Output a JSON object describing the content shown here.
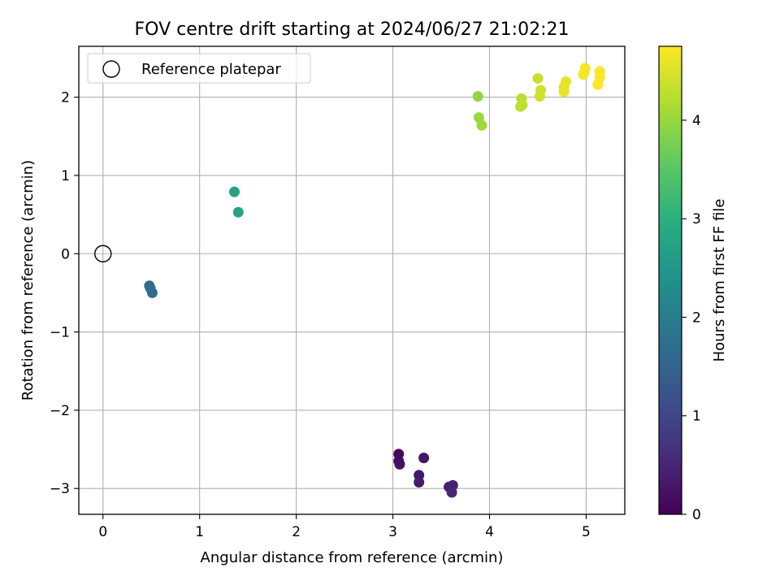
{
  "chart_data": {
    "type": "scatter",
    "title": "FOV centre drift starting at 2024/06/27 21:02:21",
    "xlabel": "Angular distance from reference (arcmin)",
    "ylabel": "Rotation from reference (arcmin)",
    "xlim": [
      -0.25,
      5.4
    ],
    "ylim": [
      -3.33,
      2.65
    ],
    "xticks": [
      0,
      1,
      2,
      3,
      4,
      5
    ],
    "yticks": [
      -3,
      -2,
      -1,
      0,
      1,
      2
    ],
    "xtick_labels": [
      "0",
      "1",
      "2",
      "3",
      "4",
      "5"
    ],
    "ytick_labels": [
      "−3",
      "−2",
      "−1",
      "0",
      "1",
      "2"
    ],
    "grid": true,
    "colormap": "viridis",
    "colorbar": {
      "label": "Hours from first FF file",
      "range": [
        0,
        4.75
      ],
      "ticks": [
        0,
        1,
        2,
        3,
        4
      ],
      "tick_labels": [
        "0",
        "1",
        "2",
        "3",
        "4"
      ]
    },
    "legend": {
      "position": "upper-left",
      "entries": [
        {
          "label": "Reference platepar",
          "marker": "open-circle"
        }
      ]
    },
    "reference_point": {
      "x": 0,
      "y": 0
    },
    "points": [
      {
        "x": 3.06,
        "y": -2.56,
        "hours": 0.1
      },
      {
        "x": 3.06,
        "y": -2.65,
        "hours": 0.15
      },
      {
        "x": 3.07,
        "y": -2.69,
        "hours": 0.2
      },
      {
        "x": 3.32,
        "y": -2.61,
        "hours": 0.25
      },
      {
        "x": 3.27,
        "y": -2.83,
        "hours": 0.3
      },
      {
        "x": 3.27,
        "y": -2.92,
        "hours": 0.35
      },
      {
        "x": 3.58,
        "y": -2.98,
        "hours": 0.4
      },
      {
        "x": 3.62,
        "y": -2.96,
        "hours": 0.45
      },
      {
        "x": 3.61,
        "y": -3.05,
        "hours": 0.5
      },
      {
        "x": 0.48,
        "y": -0.41,
        "hours": 1.6
      },
      {
        "x": 0.49,
        "y": -0.44,
        "hours": 1.65
      },
      {
        "x": 0.51,
        "y": -0.5,
        "hours": 1.7
      },
      {
        "x": 1.36,
        "y": 0.79,
        "hours": 2.7
      },
      {
        "x": 1.4,
        "y": 0.53,
        "hours": 2.75
      },
      {
        "x": 3.88,
        "y": 2.01,
        "hours": 3.95
      },
      {
        "x": 3.89,
        "y": 1.74,
        "hours": 4.0
      },
      {
        "x": 3.92,
        "y": 1.64,
        "hours": 4.05
      },
      {
        "x": 4.33,
        "y": 1.98,
        "hours": 4.25
      },
      {
        "x": 4.32,
        "y": 1.88,
        "hours": 4.28
      },
      {
        "x": 4.34,
        "y": 1.9,
        "hours": 4.3
      },
      {
        "x": 4.5,
        "y": 2.24,
        "hours": 4.38
      },
      {
        "x": 4.53,
        "y": 2.09,
        "hours": 4.4
      },
      {
        "x": 4.52,
        "y": 2.01,
        "hours": 4.42
      },
      {
        "x": 4.77,
        "y": 2.13,
        "hours": 4.55
      },
      {
        "x": 4.79,
        "y": 2.2,
        "hours": 4.57
      },
      {
        "x": 4.77,
        "y": 2.07,
        "hours": 4.58
      },
      {
        "x": 4.97,
        "y": 2.29,
        "hours": 4.66
      },
      {
        "x": 4.99,
        "y": 2.37,
        "hours": 4.68
      },
      {
        "x": 4.98,
        "y": 2.32,
        "hours": 4.69
      },
      {
        "x": 5.14,
        "y": 2.33,
        "hours": 4.72
      },
      {
        "x": 5.14,
        "y": 2.25,
        "hours": 4.73
      },
      {
        "x": 5.12,
        "y": 2.16,
        "hours": 4.75
      }
    ]
  }
}
